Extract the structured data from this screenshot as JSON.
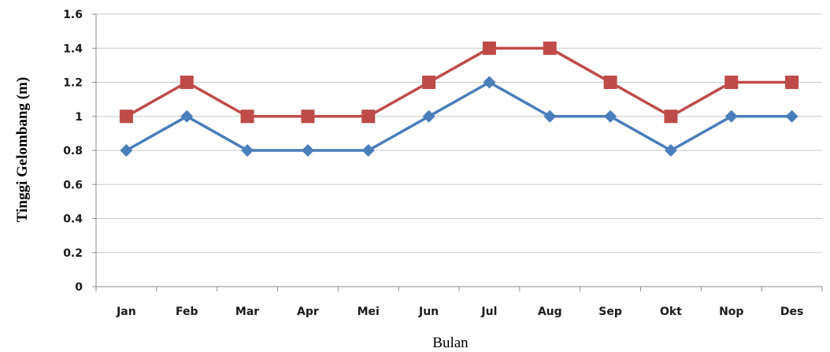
{
  "chart_data": {
    "type": "line",
    "title": "",
    "xlabel": "Bulan",
    "ylabel": "Tinggi Gelombang (m)",
    "categories": [
      "Jan",
      "Feb",
      "Mar",
      "Apr",
      "Mei",
      "Jun",
      "Jul",
      "Aug",
      "Sep",
      "Okt",
      "Nop",
      "Des"
    ],
    "ylim": [
      0,
      1.6
    ],
    "yticks": [
      "0",
      "0.2",
      "0.4",
      "0.6",
      "0.8",
      "1",
      "1.2",
      "1.4",
      "1.6"
    ],
    "grid": "horizontal",
    "legend": "none",
    "series": [
      {
        "values": [
          1.0,
          1.2,
          1.0,
          1.0,
          1.0,
          1.2,
          1.4,
          1.4,
          1.2,
          1.0,
          1.2,
          1.2
        ],
        "color": "#be4b48",
        "marker": "square"
      },
      {
        "values": [
          0.8,
          1.0,
          0.8,
          0.8,
          0.8,
          1.0,
          1.2,
          1.0,
          1.0,
          0.8,
          1.0,
          1.0
        ],
        "color": "#4a7ebb",
        "marker": "diamond"
      }
    ]
  }
}
